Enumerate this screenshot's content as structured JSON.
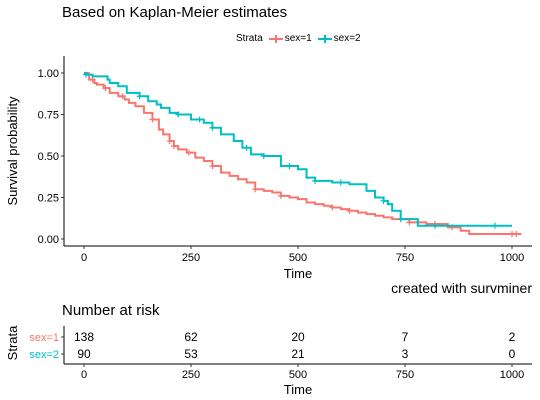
{
  "title": "Based on Kaplan-Meier estimates",
  "caption": "created with survminer",
  "legend": {
    "title": "Strata",
    "items": [
      "sex=1",
      "sex=2"
    ]
  },
  "colors": {
    "sex=1": "#F8766D",
    "sex=2": "#00BFC4"
  },
  "chart_data": [
    {
      "type": "line",
      "subtype": "step",
      "xlabel": "Time",
      "ylabel": "Survival probability",
      "xlim": [
        0,
        1022
      ],
      "ylim": [
        0,
        1
      ],
      "xticks": [
        0,
        250,
        500,
        750,
        1000
      ],
      "yticks": [
        0.0,
        0.25,
        0.5,
        0.75,
        1.0
      ],
      "ytick_labels": [
        "0.00",
        "0.25",
        "0.50",
        "0.75",
        "1.00"
      ],
      "grid": false,
      "legend_position": "top",
      "series": [
        {
          "name": "sex=1",
          "x": [
            0,
            11,
            12,
            24,
            30,
            46,
            60,
            80,
            95,
            105,
            120,
            140,
            160,
            175,
            185,
            200,
            210,
            220,
            240,
            260,
            280,
            300,
            320,
            340,
            360,
            380,
            400,
            420,
            440,
            460,
            480,
            500,
            520,
            540,
            560,
            580,
            600,
            620,
            640,
            660,
            680,
            700,
            720,
            760,
            800,
            850,
            880,
            900,
            1022
          ],
          "y": [
            1.0,
            0.99,
            0.96,
            0.94,
            0.93,
            0.91,
            0.88,
            0.86,
            0.84,
            0.82,
            0.8,
            0.76,
            0.72,
            0.66,
            0.63,
            0.59,
            0.56,
            0.54,
            0.52,
            0.49,
            0.47,
            0.44,
            0.4,
            0.38,
            0.36,
            0.34,
            0.3,
            0.29,
            0.28,
            0.26,
            0.25,
            0.24,
            0.22,
            0.21,
            0.2,
            0.19,
            0.18,
            0.17,
            0.16,
            0.15,
            0.14,
            0.13,
            0.12,
            0.1,
            0.09,
            0.07,
            0.05,
            0.03,
            0.03
          ],
          "censor_x": [
            20,
            50,
            90,
            160,
            200,
            210,
            245,
            300,
            400,
            460,
            580,
            620,
            760,
            820,
            860,
            1000,
            1010
          ]
        },
        {
          "name": "sex=2",
          "x": [
            0,
            5,
            20,
            55,
            60,
            80,
            100,
            130,
            150,
            170,
            180,
            200,
            220,
            250,
            280,
            300,
            320,
            350,
            370,
            390,
            420,
            460,
            500,
            520,
            540,
            580,
            620,
            660,
            680,
            700,
            710,
            720,
            740,
            780,
            1000
          ],
          "y": [
            1.0,
            0.99,
            0.98,
            0.96,
            0.94,
            0.92,
            0.88,
            0.86,
            0.83,
            0.81,
            0.79,
            0.76,
            0.75,
            0.72,
            0.7,
            0.67,
            0.63,
            0.59,
            0.55,
            0.51,
            0.5,
            0.44,
            0.42,
            0.37,
            0.35,
            0.34,
            0.33,
            0.29,
            0.25,
            0.23,
            0.21,
            0.17,
            0.12,
            0.08,
            0.08
          ],
          "censor_x": [
            5,
            130,
            220,
            270,
            300,
            380,
            420,
            480,
            540,
            600,
            700,
            740,
            820,
            960
          ]
        }
      ]
    },
    {
      "type": "table",
      "title": "Number at risk",
      "xlabel": "Time",
      "ylabel": "Strata",
      "x": [
        0,
        250,
        500,
        750,
        1000
      ],
      "xticks": [
        0,
        250,
        500,
        750,
        1000
      ],
      "rows": [
        {
          "name": "sex=1",
          "values": [
            138,
            62,
            20,
            7,
            2
          ]
        },
        {
          "name": "sex=2",
          "values": [
            90,
            53,
            21,
            3,
            0
          ]
        }
      ]
    }
  ]
}
